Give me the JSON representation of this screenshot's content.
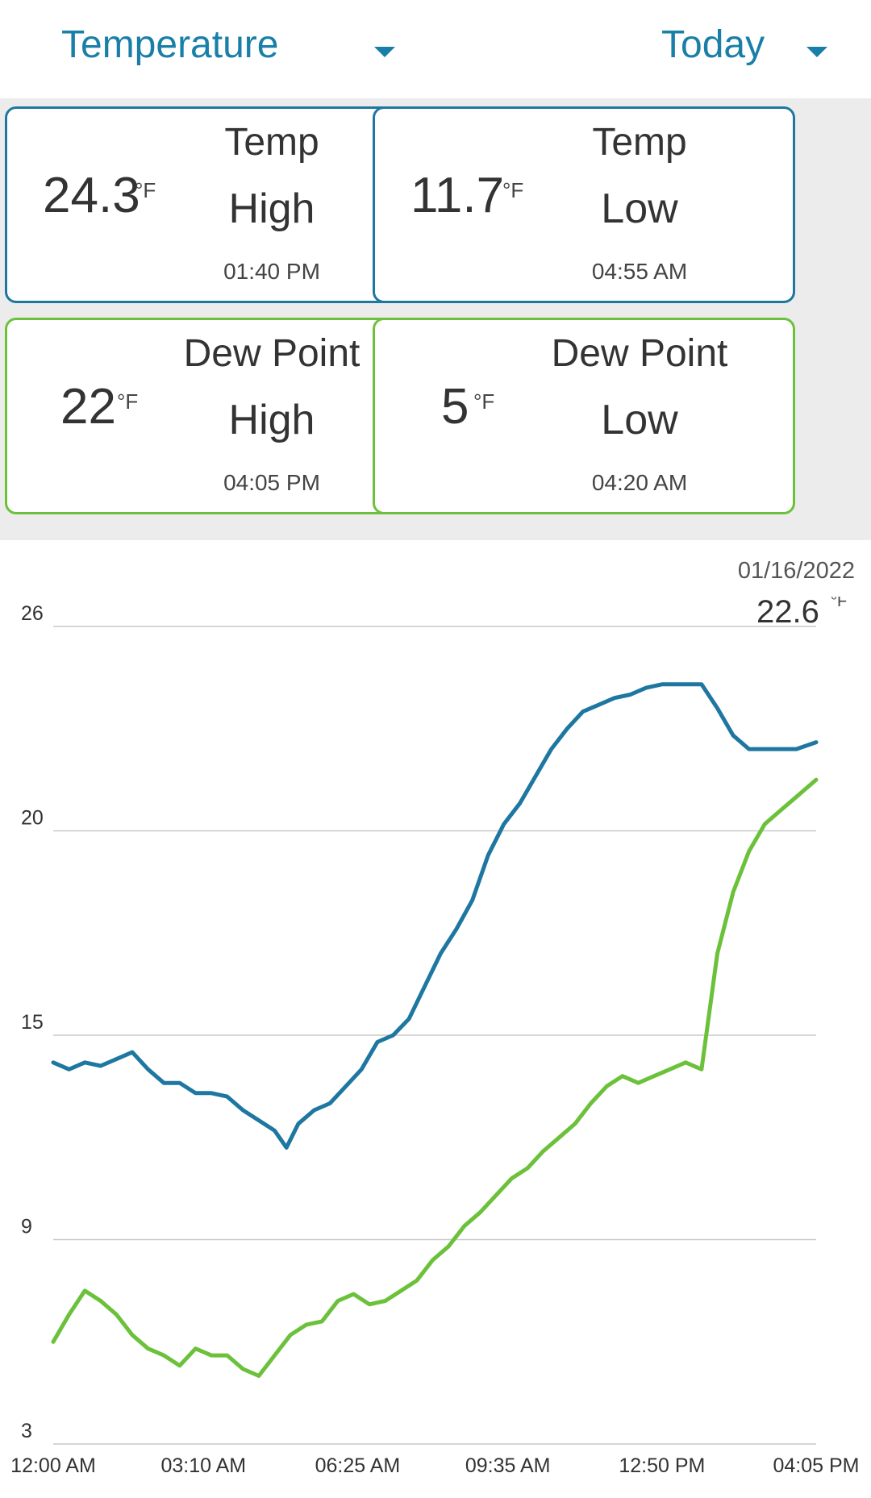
{
  "header": {
    "metric_label": "Temperature",
    "period_label": "Today"
  },
  "cards": [
    {
      "value": "24.3",
      "unit": "°F",
      "line1": "Temp",
      "line2": "High",
      "time": "01:40 PM",
      "color": "#1e77a1"
    },
    {
      "value": "11.7",
      "unit": "°F",
      "line1": "Temp",
      "line2": "Low",
      "time": "04:55 AM",
      "color": "#1e77a1"
    },
    {
      "value": "22",
      "unit": "°F",
      "line1": "Dew Point",
      "line2": "High",
      "time": "04:05 PM",
      "color": "#6cc13b"
    },
    {
      "value": "5",
      "unit": "°F",
      "line1": "Dew Point",
      "line2": "Low",
      "time": "04:20 AM",
      "color": "#6cc13b"
    }
  ],
  "chart_date": "01/16/2022",
  "chart_data": {
    "type": "line",
    "x_tick_labels": [
      "12:00 AM",
      "03:10 AM",
      "06:25 AM",
      "09:35 AM",
      "12:50 PM",
      "04:05 PM"
    ],
    "y_ticks": [
      3,
      9,
      15,
      20,
      26
    ],
    "ylim": [
      3,
      26
    ],
    "grid": true,
    "current_value": "22.6",
    "current_unit": "°F",
    "series": [
      {
        "color": "#1e77a1",
        "x": [
          "12:00 AM",
          "12:20 AM",
          "12:40 AM",
          "01:00 AM",
          "01:20 AM",
          "01:40 AM",
          "02:00 AM",
          "02:20 AM",
          "02:40 AM",
          "03:00 AM",
          "03:20 AM",
          "03:40 AM",
          "04:00 AM",
          "04:20 AM",
          "04:40 AM",
          "04:55 AM",
          "05:10 AM",
          "05:30 AM",
          "05:50 AM",
          "06:10 AM",
          "06:30 AM",
          "06:50 AM",
          "07:10 AM",
          "07:30 AM",
          "07:50 AM",
          "08:10 AM",
          "08:30 AM",
          "08:50 AM",
          "09:10 AM",
          "09:30 AM",
          "09:50 AM",
          "10:10 AM",
          "10:30 AM",
          "10:50 AM",
          "11:10 AM",
          "11:30 AM",
          "11:50 AM",
          "12:10 PM",
          "12:30 PM",
          "12:50 PM",
          "01:10 PM",
          "01:40 PM",
          "02:00 PM",
          "02:20 PM",
          "02:40 PM",
          "03:00 PM",
          "03:20 PM",
          "03:40 PM",
          "04:05 PM"
        ],
        "values": [
          14.2,
          14.0,
          14.2,
          14.1,
          14.3,
          14.5,
          14.0,
          13.6,
          13.6,
          13.3,
          13.3,
          13.2,
          12.8,
          12.5,
          12.2,
          11.7,
          12.4,
          12.8,
          13.0,
          13.5,
          14.0,
          14.8,
          15.0,
          15.4,
          16.2,
          17.0,
          17.6,
          18.3,
          19.4,
          20.2,
          20.8,
          21.6,
          22.4,
          23.0,
          23.5,
          23.7,
          23.9,
          24.0,
          24.2,
          24.3,
          24.3,
          24.3,
          23.6,
          22.8,
          22.4,
          22.4,
          22.4,
          22.4,
          22.6
        ]
      },
      {
        "color": "#6cc13b",
        "x": [
          "12:00 AM",
          "12:20 AM",
          "12:40 AM",
          "01:00 AM",
          "01:20 AM",
          "01:40 AM",
          "02:00 AM",
          "02:20 AM",
          "02:40 AM",
          "03:00 AM",
          "03:20 AM",
          "03:40 AM",
          "04:00 AM",
          "04:20 AM",
          "04:40 AM",
          "05:00 AM",
          "05:20 AM",
          "05:40 AM",
          "06:00 AM",
          "06:20 AM",
          "06:40 AM",
          "07:00 AM",
          "07:20 AM",
          "07:40 AM",
          "08:00 AM",
          "08:20 AM",
          "08:40 AM",
          "09:00 AM",
          "09:20 AM",
          "09:40 AM",
          "10:00 AM",
          "10:20 AM",
          "10:40 AM",
          "11:00 AM",
          "11:20 AM",
          "11:40 AM",
          "12:00 PM",
          "12:20 PM",
          "12:40 PM",
          "01:00 PM",
          "01:20 PM",
          "01:40 PM",
          "02:00 PM",
          "02:20 PM",
          "02:40 PM",
          "03:00 PM",
          "03:20 PM",
          "03:40 PM",
          "04:05 PM"
        ],
        "values": [
          6.0,
          6.8,
          7.5,
          7.2,
          6.8,
          6.2,
          5.8,
          5.6,
          5.3,
          5.8,
          5.6,
          5.6,
          5.2,
          5.0,
          5.6,
          6.2,
          6.5,
          6.6,
          7.2,
          7.4,
          7.1,
          7.2,
          7.5,
          7.8,
          8.4,
          8.8,
          9.4,
          9.8,
          10.3,
          10.8,
          11.1,
          11.6,
          12.0,
          12.4,
          13.0,
          13.5,
          13.8,
          13.6,
          13.8,
          14.0,
          14.2,
          14.0,
          17.0,
          18.5,
          19.5,
          20.2,
          20.6,
          21.0,
          21.5
        ]
      }
    ]
  }
}
